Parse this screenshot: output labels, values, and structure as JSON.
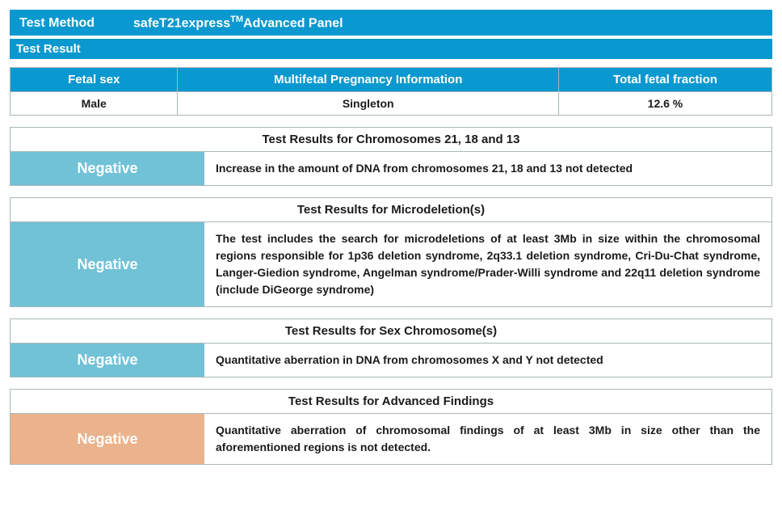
{
  "header": {
    "label": "Test Method",
    "method_prefix": "safeT21express",
    "method_tm": "TM",
    "method_suffix": "Advanced Panel"
  },
  "subheader": "Test Result",
  "colors": {
    "primary": "#0998cf",
    "status_blue": "#72c2d7",
    "status_orange": "#eab38c",
    "border": "#aab7bb",
    "text": "#1a1a1a",
    "white": "#ffffff"
  },
  "top_table": {
    "headers": [
      "Fetal sex",
      "Multifetal Pregnancy Information",
      "Total fetal fraction"
    ],
    "values": [
      "Male",
      "Singleton",
      "12.6 %"
    ],
    "col_widths": [
      "22%",
      "50%",
      "28%"
    ]
  },
  "sections": [
    {
      "title": "Test Results for Chromosomes 21, 18 and 13",
      "status": "Negative",
      "status_color": "#72c2d7",
      "desc": "Increase in the amount of DNA from chromosomes 21, 18 and 13 not detected"
    },
    {
      "title": "Test Results for Microdeletion(s)",
      "status": "Negative",
      "status_color": "#72c2d7",
      "desc": "The test includes the search for microdeletions of at least 3Mb in size within the chromosomal regions responsible for 1p36 deletion syndrome, 2q33.1 deletion syndrome, Cri-Du-Chat syndrome, Langer-Giedion syndrome, Angelman syndrome/Prader-Willi syndrome and 22q11 deletion syndrome (include DiGeorge syndrome)"
    },
    {
      "title": "Test Results for Sex Chromosome(s)",
      "status": "Negative",
      "status_color": "#72c2d7",
      "desc": "Quantitative aberration in DNA from chromosomes X and Y not detected"
    },
    {
      "title": "Test Results for Advanced Findings",
      "status": "Negative",
      "status_color": "#eab38c",
      "desc": "Quantitative aberration of chromosomal findings of at least 3Mb in size other than the aforementioned regions is not detected."
    }
  ]
}
